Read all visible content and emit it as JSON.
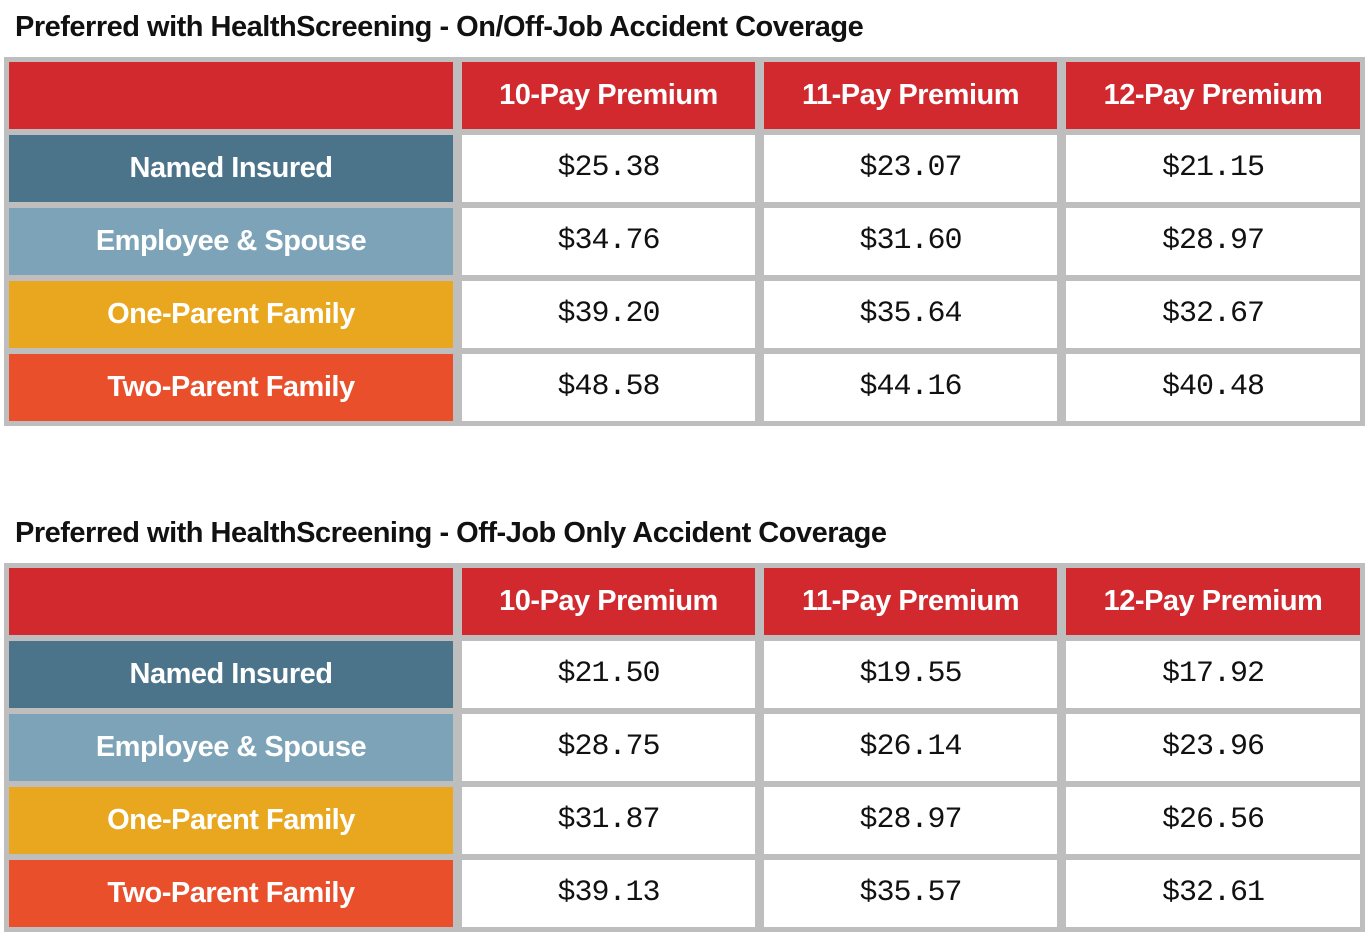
{
  "colors": {
    "header_red": "#d2292f",
    "named_insured_blue": "#4b748a",
    "employee_spouse_blue": "#7da3b9",
    "one_parent_gold": "#e9a720",
    "two_parent_orange": "#e94f2b",
    "grid_gray": "#bebebe",
    "value_text": "#111111",
    "header_text": "#ffffff"
  },
  "tables": [
    {
      "title": "Preferred with HealthScreening - On/Off-Job Accident Coverage",
      "columns": [
        "10-Pay Premium",
        "11-Pay Premium",
        "12-Pay Premium"
      ],
      "rows": [
        {
          "label": "Named Insured",
          "values": [
            "$25.38",
            "$23.07",
            "$21.15"
          ]
        },
        {
          "label": "Employee & Spouse",
          "values": [
            "$34.76",
            "$31.60",
            "$28.97"
          ]
        },
        {
          "label": "One-Parent Family",
          "values": [
            "$39.20",
            "$35.64",
            "$32.67"
          ]
        },
        {
          "label": "Two-Parent Family",
          "values": [
            "$48.58",
            "$44.16",
            "$40.48"
          ]
        }
      ]
    },
    {
      "title": "Preferred with HealthScreening - Off-Job Only Accident Coverage",
      "columns": [
        "10-Pay Premium",
        "11-Pay Premium",
        "12-Pay Premium"
      ],
      "rows": [
        {
          "label": "Named Insured",
          "values": [
            "$21.50",
            "$19.55",
            "$17.92"
          ]
        },
        {
          "label": "Employee & Spouse",
          "values": [
            "$28.75",
            "$26.14",
            "$23.96"
          ]
        },
        {
          "label": "One-Parent Family",
          "values": [
            "$31.87",
            "$28.97",
            "$26.56"
          ]
        },
        {
          "label": "Two-Parent Family",
          "values": [
            "$39.13",
            "$35.57",
            "$32.61"
          ]
        }
      ]
    }
  ]
}
